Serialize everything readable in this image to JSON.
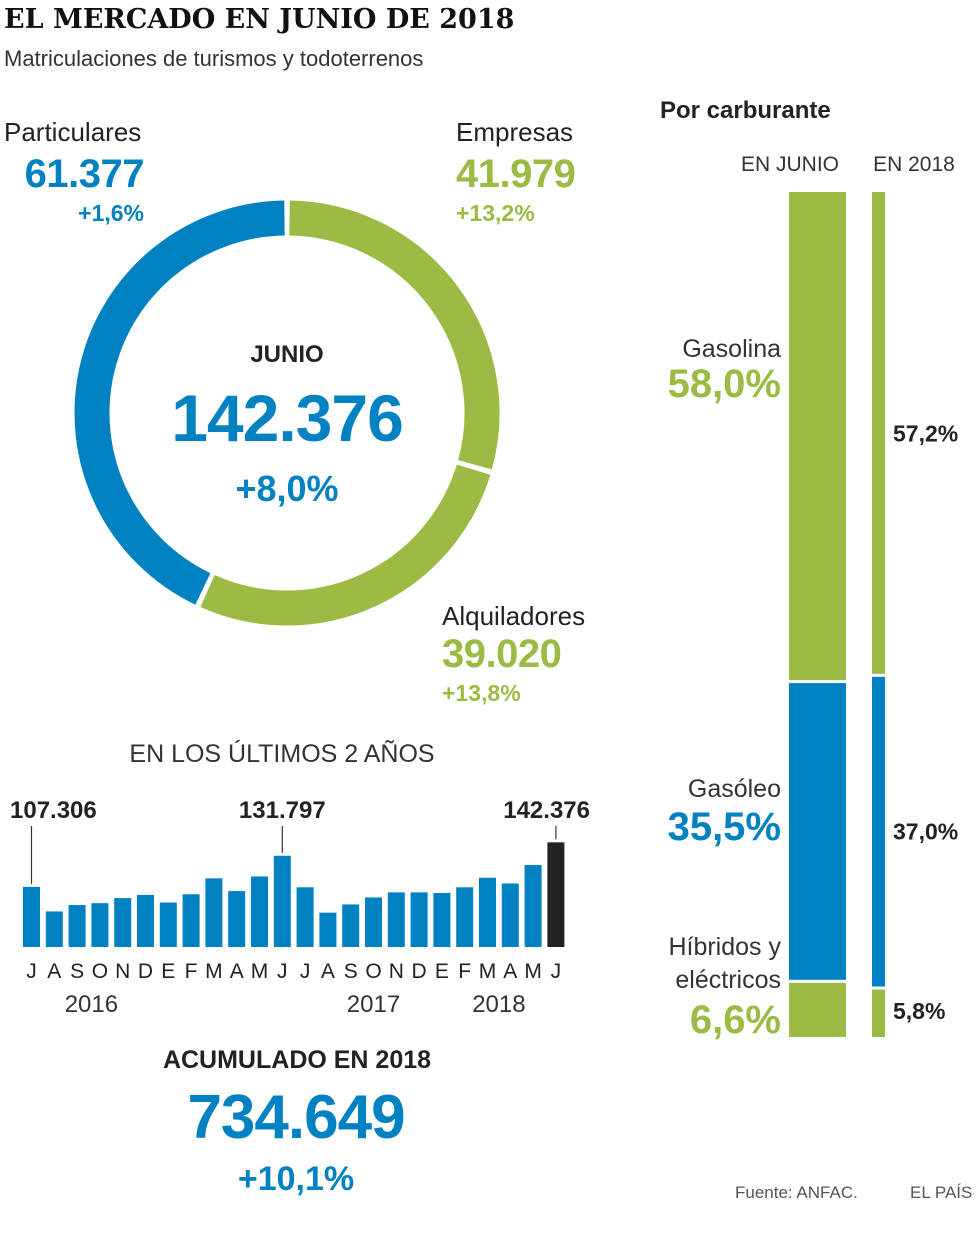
{
  "header": {
    "title": "EL MERCADO EN JUNIO DE 2018",
    "subtitle": "Matriculaciones de turismos y todoterrenos"
  },
  "colors": {
    "blue": "#0081c1",
    "green": "#9bbb44",
    "black": "#222222"
  },
  "donut": {
    "center_label": "JUNIO",
    "total": "142.376",
    "total_change": "+8,0%",
    "segments": [
      {
        "label": "Particulares",
        "value_text": "61.377",
        "change": "+1,6%",
        "value": 61377,
        "color": "#0081c1"
      },
      {
        "label": "Empresas",
        "value_text": "41.979",
        "change": "+13,2%",
        "value": 41979,
        "color": "#9bbb44"
      },
      {
        "label": "Alquiladores",
        "value_text": "39.020",
        "change": "+13,8%",
        "value": 39020,
        "color": "#9bbb44"
      }
    ]
  },
  "chart_data": [
    {
      "type": "pie",
      "categories": [
        "Particulares",
        "Empresas",
        "Alquiladores"
      ],
      "values": [
        61377,
        41979,
        39020
      ],
      "title": "JUNIO"
    },
    {
      "type": "bar",
      "title": "EN LOS ÚLTIMOS 2 AÑOS",
      "categories": [
        "J",
        "A",
        "S",
        "O",
        "N",
        "D",
        "E",
        "F",
        "M",
        "A",
        "M",
        "J",
        "J",
        "A",
        "S",
        "O",
        "N",
        "D",
        "E",
        "F",
        "M",
        "A",
        "M",
        "J"
      ],
      "years": [
        {
          "label": "2016",
          "from": 0,
          "to": 5
        },
        {
          "label": "2017",
          "from": 6,
          "to": 17
        },
        {
          "label": "2018",
          "from": 18,
          "to": 23
        }
      ],
      "values": [
        107306,
        88000,
        93000,
        94500,
        98500,
        101000,
        95000,
        101500,
        114000,
        104000,
        115500,
        131797,
        107000,
        87000,
        93500,
        99000,
        103000,
        103000,
        102500,
        107000,
        114500,
        110000,
        124500,
        142376
      ],
      "labels": [
        {
          "index": 0,
          "text": "107.306"
        },
        {
          "index": 11,
          "text": "131.797"
        },
        {
          "index": 23,
          "text": "142.376"
        }
      ],
      "highlight_index": 23,
      "ylim": [
        60000,
        145000
      ]
    },
    {
      "type": "bar",
      "title": "Por carburante",
      "series": [
        {
          "name": "EN JUNIO",
          "values": [
            58.0,
            35.5,
            6.6
          ],
          "labels": [
            "58,0%",
            "35,5%",
            "6,6%"
          ]
        },
        {
          "name": "EN 2018",
          "values": [
            57.2,
            37.0,
            5.8
          ],
          "labels": [
            "57,2%",
            "37,0%",
            "5,8%"
          ]
        }
      ],
      "categories": [
        "Gasolina",
        "Gasóleo",
        "Híbridos y eléctricos"
      ],
      "category_lines": [
        [
          "Gasolina"
        ],
        [
          "Gasóleo"
        ],
        [
          "Híbridos y",
          "eléctricos"
        ]
      ],
      "colors": [
        "#9bbb44",
        "#0081c1",
        "#9bbb44"
      ],
      "stacked": true
    }
  ],
  "accumulated": {
    "label": "ACUMULADO EN 2018",
    "value": "734.649",
    "change": "+10,1%"
  },
  "footer": {
    "source": "Fuente: ANFAC.",
    "brand": "EL PAÍS"
  }
}
